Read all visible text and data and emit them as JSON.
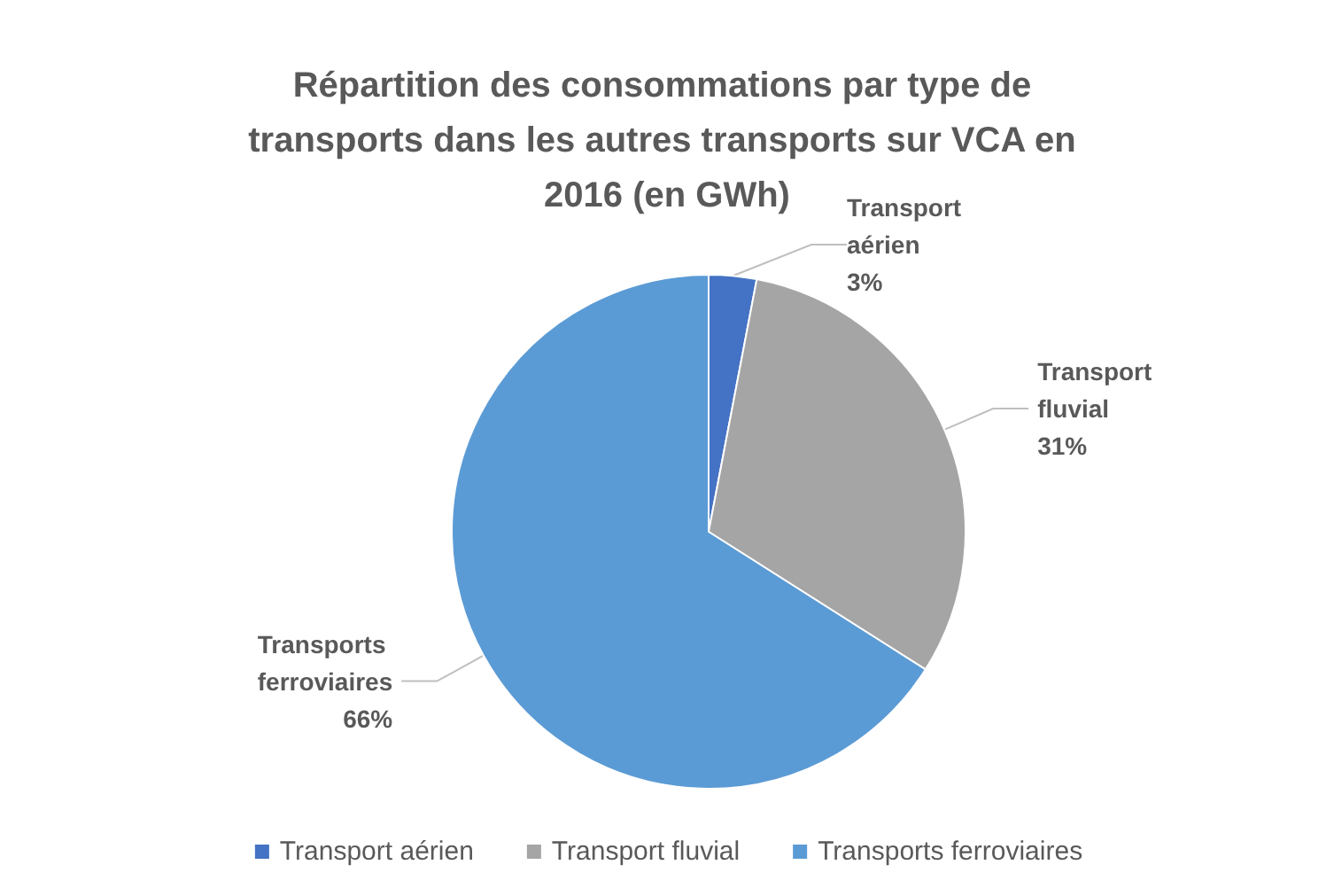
{
  "chart_data": {
    "type": "pie",
    "title": "Répartition des consommations par type de transports dans les autres transports sur VCA en 2016 (en GWh)",
    "categories": [
      "Transport aérien",
      "Transport fluvial",
      "Transports ferroviaires"
    ],
    "values": [
      3,
      31,
      66
    ],
    "colors": [
      "#4472c4",
      "#a5a5a5",
      "#5b9bd5"
    ],
    "value_labels": [
      "3%",
      "31%",
      "66%"
    ],
    "legend": "bottom"
  }
}
